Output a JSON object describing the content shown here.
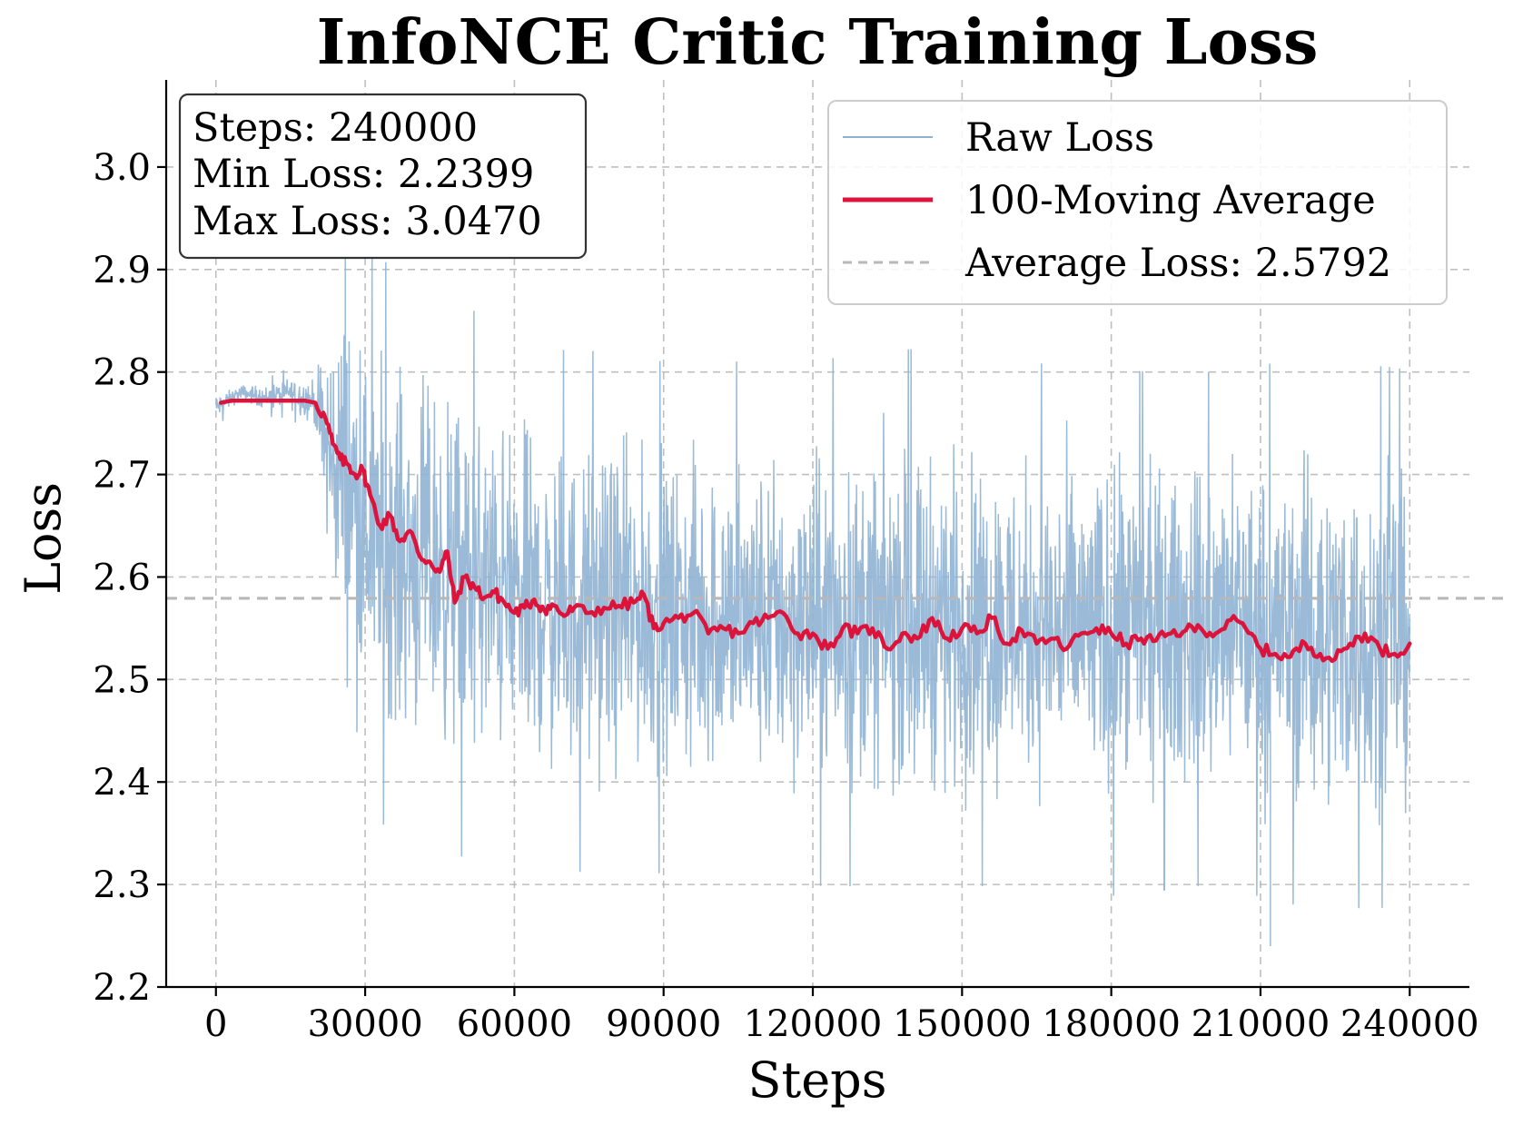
{
  "chart_data": {
    "type": "line",
    "title": "InfoNCE Critic Training Loss",
    "xlabel": "Steps",
    "ylabel": "Loss",
    "xlim": [
      -10000,
      252000
    ],
    "ylim": [
      2.2,
      3.085
    ],
    "xticks": [
      0,
      30000,
      60000,
      90000,
      120000,
      150000,
      180000,
      210000,
      240000
    ],
    "yticks": [
      2.2,
      2.3,
      2.4,
      2.5,
      2.6,
      2.7,
      2.8,
      2.9,
      3.0
    ],
    "grid": true,
    "legend_position": "top-right",
    "series": [
      {
        "name": "Raw Loss",
        "label": "Raw Loss",
        "color": "#8fb2d3",
        "style": "thin-noisy",
        "envelope": {
          "x": [
            0,
            5000,
            10000,
            15000,
            20000,
            22000,
            25000,
            28000,
            31000,
            35000,
            40000,
            45000,
            50000,
            60000,
            70000,
            80000,
            90000,
            100000,
            120000,
            140000,
            160000,
            180000,
            200000,
            220000,
            240000
          ],
          "low": [
            2.75,
            2.77,
            2.76,
            2.76,
            2.74,
            2.6,
            2.5,
            2.44,
            2.42,
            2.41,
            2.4,
            2.39,
            2.38,
            2.37,
            2.36,
            2.37,
            2.36,
            2.36,
            2.35,
            2.35,
            2.35,
            2.34,
            2.35,
            2.33,
            2.33
          ],
          "high": [
            2.78,
            2.79,
            2.79,
            2.8,
            2.8,
            2.85,
            2.92,
            2.91,
            2.86,
            2.85,
            2.84,
            2.83,
            2.81,
            2.79,
            2.77,
            2.77,
            2.76,
            2.76,
            2.76,
            2.77,
            2.76,
            2.75,
            2.75,
            2.76,
            2.75
          ]
        },
        "extremes": {
          "min": {
            "x": 212000,
            "y": 2.2399
          },
          "max": {
            "x": 26000,
            "y": 3.047
          }
        }
      },
      {
        "name": "100-Moving Average",
        "label": "100-Moving Average",
        "color": "#dc143c",
        "x": [
          1000,
          3000,
          6000,
          10000,
          14000,
          18000,
          20000,
          22000,
          23500,
          25000,
          26500,
          28000,
          29500,
          31000,
          33000,
          35000,
          37000,
          39000,
          41000,
          43000,
          45000,
          46500,
          48000,
          50000,
          52000,
          54000,
          56000,
          58000,
          60000,
          62000,
          64000,
          66000,
          68000,
          70000,
          72000,
          75000,
          78000,
          81000,
          84000,
          86000,
          88000,
          90000,
          93000,
          96000,
          99000,
          102000,
          105000,
          108000,
          111000,
          114000,
          117000,
          120000,
          123000,
          126000,
          129000,
          132000,
          135000,
          138000,
          141000,
          144000,
          147000,
          150000,
          153000,
          156000,
          159000,
          162000,
          165000,
          168000,
          171000,
          174000,
          177000,
          180000,
          183000,
          186000,
          189000,
          192000,
          195000,
          198000,
          201000,
          204000,
          207000,
          210000,
          213000,
          216000,
          219000,
          222000,
          225000,
          228000,
          231000,
          234000,
          237000,
          240000
        ],
        "values": [
          2.77,
          2.772,
          2.772,
          2.772,
          2.772,
          2.772,
          2.77,
          2.755,
          2.73,
          2.715,
          2.71,
          2.7,
          2.705,
          2.68,
          2.65,
          2.66,
          2.635,
          2.645,
          2.62,
          2.615,
          2.605,
          2.625,
          2.575,
          2.6,
          2.59,
          2.58,
          2.585,
          2.575,
          2.565,
          2.57,
          2.578,
          2.568,
          2.572,
          2.562,
          2.57,
          2.565,
          2.57,
          2.572,
          2.575,
          2.583,
          2.55,
          2.555,
          2.56,
          2.565,
          2.545,
          2.55,
          2.545,
          2.555,
          2.56,
          2.565,
          2.545,
          2.545,
          2.53,
          2.55,
          2.545,
          2.55,
          2.53,
          2.545,
          2.54,
          2.56,
          2.54,
          2.55,
          2.545,
          2.56,
          2.535,
          2.548,
          2.535,
          2.54,
          2.53,
          2.545,
          2.55,
          2.545,
          2.535,
          2.54,
          2.538,
          2.545,
          2.548,
          2.55,
          2.545,
          2.558,
          2.55,
          2.53,
          2.525,
          2.522,
          2.535,
          2.525,
          2.52,
          2.535,
          2.545,
          2.53,
          2.525,
          2.535
        ]
      },
      {
        "name": "Average Loss: 2.5792",
        "label": "Average Loss: 2.5792",
        "color": "#b8b8b8",
        "style": "dashed",
        "value": 2.5792
      }
    ],
    "stats": {
      "steps_label": "Steps: 240000",
      "min_label": "Min Loss: 2.2399",
      "max_label": "Max Loss: 3.0470"
    }
  }
}
